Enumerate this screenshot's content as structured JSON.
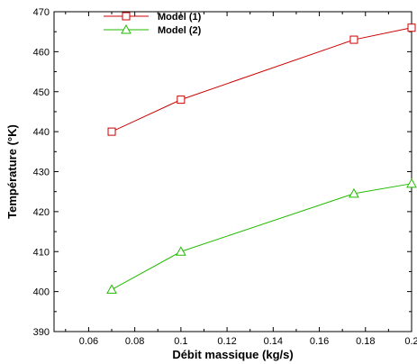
{
  "chart_data": {
    "type": "line",
    "title": "",
    "xlabel": "Débit massique (kg/s)",
    "ylabel": "Température (°K)",
    "xlim": [
      0.045,
      0.2
    ],
    "ylim": [
      390,
      470
    ],
    "xticks": [
      0.06,
      0.08,
      0.1,
      0.12,
      0.14,
      0.16,
      0.18,
      0.2
    ],
    "xtick_labels": [
      "0.06",
      "0.08",
      "0.1",
      "0.12",
      "0.14",
      "0.16",
      "0.18",
      "0.2"
    ],
    "yticks": [
      390,
      400,
      410,
      420,
      430,
      440,
      450,
      460,
      470
    ],
    "ytick_labels": [
      "390",
      "400",
      "410",
      "420",
      "430",
      "440",
      "450",
      "460",
      "470"
    ],
    "grid": false,
    "legend_position": "top-left",
    "series": [
      {
        "name": "Model (1)",
        "color": "#cc0000",
        "marker": "square",
        "x": [
          0.07,
          0.1,
          0.175,
          0.2
        ],
        "y": [
          440,
          448,
          463,
          466
        ]
      },
      {
        "name": "Model (2)",
        "color": "#22bb00",
        "marker": "triangle",
        "x": [
          0.07,
          0.1,
          0.175,
          0.2
        ],
        "y": [
          400.5,
          410,
          424.5,
          427
        ]
      }
    ]
  }
}
